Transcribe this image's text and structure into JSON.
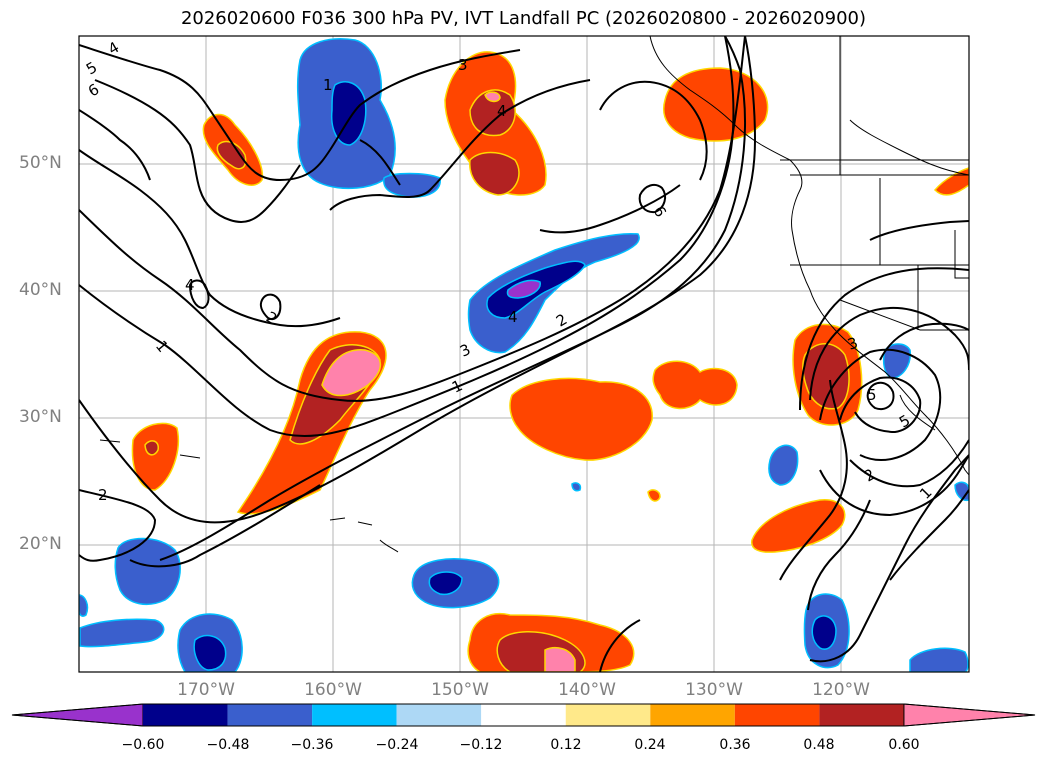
{
  "title": "2026020600 F036 300 hPa PV, IVT Landfall PC (2026020800 - 2026020900)",
  "map": {
    "lat_labels": [
      "50°N",
      "40°N",
      "30°N",
      "20°N"
    ],
    "lon_labels": [
      "170°W",
      "160°W",
      "150°W",
      "140°W",
      "130°W",
      "120°W"
    ],
    "contour_labels": [
      "4",
      "5",
      "6",
      "3",
      "1",
      "4",
      "6",
      "4",
      "2",
      "1",
      "3",
      "1",
      "2",
      "4",
      "2",
      "3",
      "5",
      "2",
      "1",
      "5"
    ]
  },
  "colorbar": {
    "tick_labels": [
      "−0.60",
      "−0.48",
      "−0.36",
      "−0.24",
      "−0.12",
      "0.12",
      "0.24",
      "0.36",
      "0.48",
      "0.60"
    ],
    "colors": [
      "#9932cc",
      "#00008b",
      "#3a5fcd",
      "#00bfff",
      "#add8f5",
      "#ffffff",
      "#ffe98a",
      "#ffa500",
      "#ff4500",
      "#b22222",
      "#ff82ab"
    ]
  }
}
